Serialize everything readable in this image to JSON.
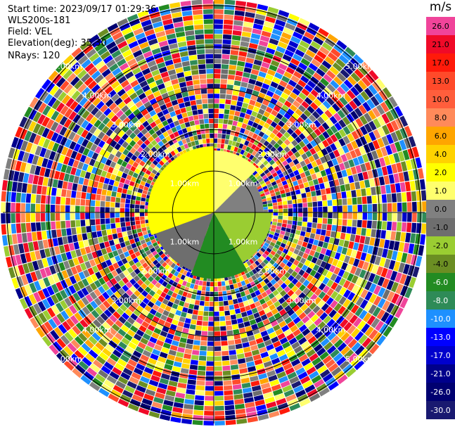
{
  "header": {
    "start_time": "Start time: 2023/09/17 01:29:36",
    "instrument": "WLS200s-181",
    "field": "Field: VEL",
    "elevation": "Elevation(deg): 35.30",
    "nrays": "NRays: 120"
  },
  "colorbar": {
    "unit": "m/s",
    "levels": [
      {
        "label": "26.0",
        "color": "#f0449a"
      },
      {
        "label": "21.0",
        "color": "#f00a28"
      },
      {
        "label": "17.0",
        "color": "#ff1a0a"
      },
      {
        "label": "13.0",
        "color": "#ff4a2a"
      },
      {
        "label": "10.0",
        "color": "#ff5e3c"
      },
      {
        "label": "8.0",
        "color": "#ff8a5a"
      },
      {
        "label": "6.0",
        "color": "#ffa500"
      },
      {
        "label": "4.0",
        "color": "#ffd200"
      },
      {
        "label": "2.0",
        "color": "#ffff00"
      },
      {
        "label": "1.0",
        "color": "#ffff6e"
      },
      {
        "label": "0.0",
        "color": "#808080"
      },
      {
        "label": "-1.0",
        "color": "#6e6e6e"
      },
      {
        "label": "-2.0",
        "color": "#9acd32"
      },
      {
        "label": "-4.0",
        "color": "#6b8e23"
      },
      {
        "label": "-6.0",
        "color": "#228b22"
      },
      {
        "label": "-8.0",
        "color": "#2e8b57"
      },
      {
        "label": "-10.0",
        "color": "#1e90ff"
      },
      {
        "label": "-13.0",
        "color": "#0000ff"
      },
      {
        "label": "-17.0",
        "color": "#0000cd"
      },
      {
        "label": "-21.0",
        "color": "#00008b"
      },
      {
        "label": "-26.0",
        "color": "#000070"
      },
      {
        "label": "-30.0",
        "color": "#191970"
      }
    ]
  },
  "chart_data": {
    "type": "heatmap",
    "subtype": "ppi",
    "field": "VEL",
    "nrays": 120,
    "range_rings_km": [
      {
        "value": 1.0,
        "label": "1.00km"
      },
      {
        "value": 2.0,
        "label": "2.00km"
      },
      {
        "value": 3.0,
        "label": "3.00km"
      },
      {
        "value": 4.0,
        "label": "4.00km"
      },
      {
        "value": 5.0,
        "label": "5.00km"
      }
    ],
    "max_range_km": 5.1,
    "sectors": [
      {
        "az_from": 0,
        "az_to": 45,
        "inner_km": 0.0,
        "outer_km": 1.5,
        "value": 1.0
      },
      {
        "az_from": 45,
        "az_to": 90,
        "inner_km": 0.0,
        "outer_km": 1.2,
        "value": 0.0
      },
      {
        "az_from": 90,
        "az_to": 150,
        "inner_km": 0.0,
        "outer_km": 1.4,
        "value": -2.0
      },
      {
        "az_from": 150,
        "az_to": 200,
        "inner_km": 0.0,
        "outer_km": 1.6,
        "value": -6.0
      },
      {
        "az_from": 200,
        "az_to": 250,
        "inner_km": 0.0,
        "outer_km": 1.5,
        "value": -1.0
      },
      {
        "az_from": 250,
        "az_to": 360,
        "inner_km": 0.0,
        "outer_km": 1.6,
        "value": 2.0
      }
    ]
  }
}
